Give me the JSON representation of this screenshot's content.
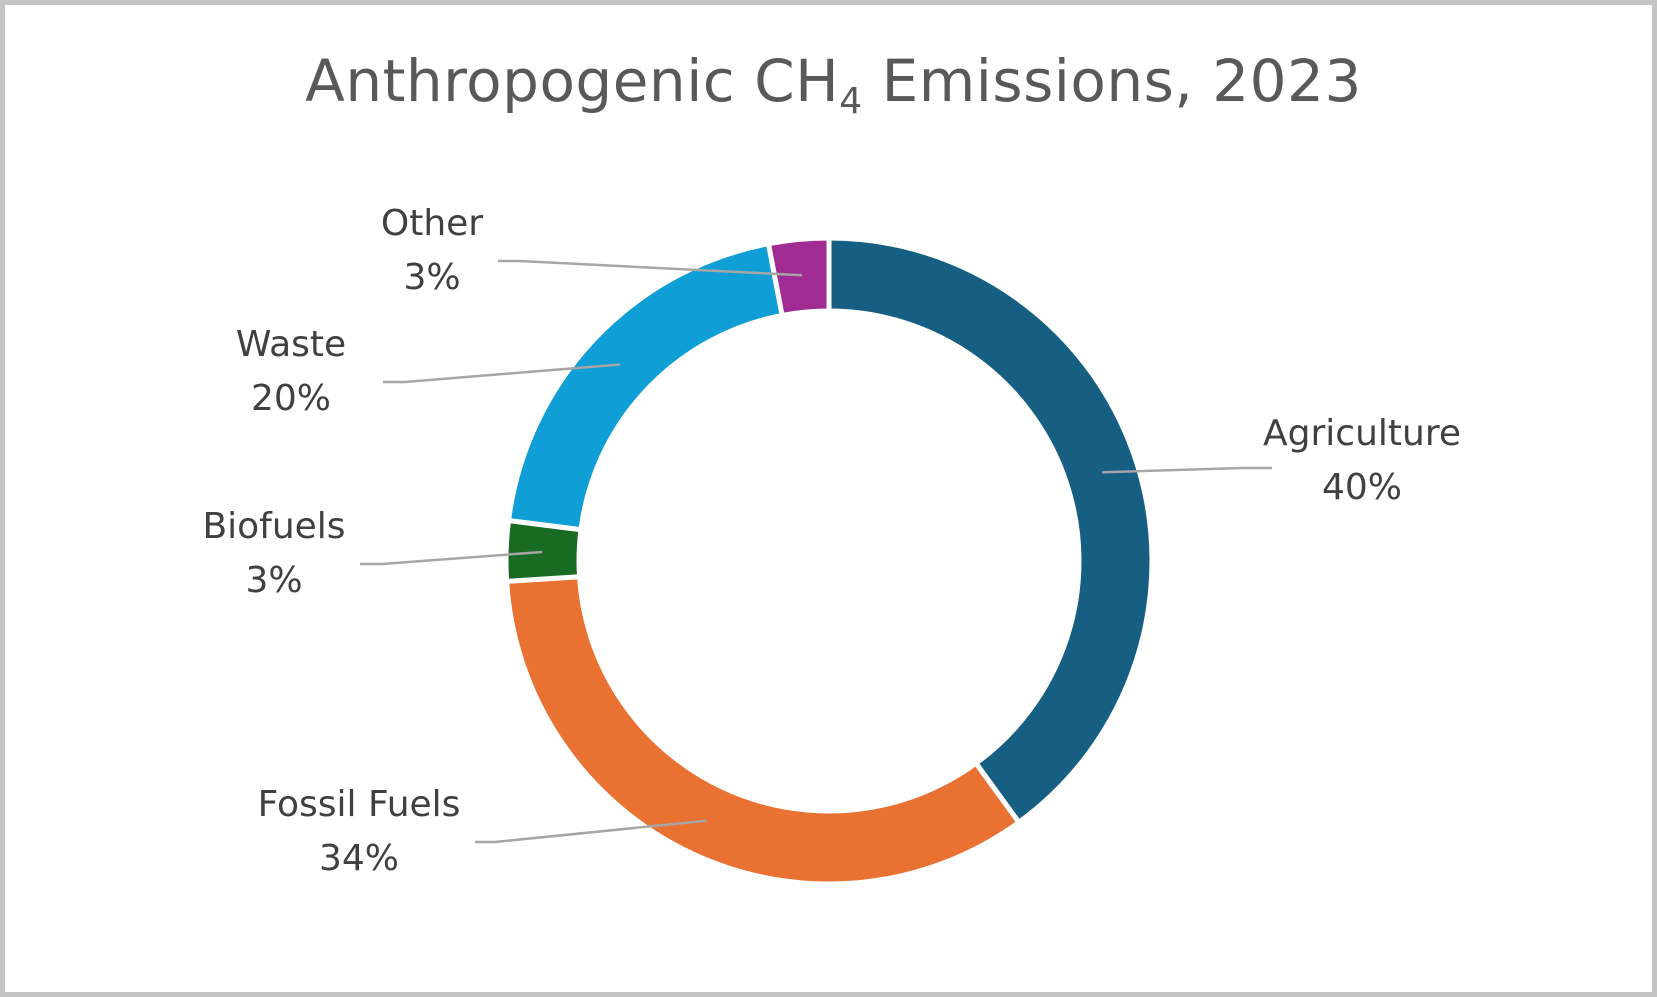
{
  "chart_data": {
    "type": "pie",
    "variant": "donut",
    "title": {
      "main": "Anthropogenic CH",
      "subscript": "4",
      "suffix": " Emissions, 2023"
    },
    "categories": [
      "Agriculture",
      "Fossil Fuels",
      "Biofuels",
      "Waste",
      "Other"
    ],
    "values": [
      40,
      34,
      3,
      20,
      3
    ],
    "labels": [
      "40%",
      "34%",
      "3%",
      "20%",
      "3%"
    ],
    "colors": [
      "#165f82",
      "#e97132",
      "#196b24",
      "#0f9ed5",
      "#a02b93"
    ],
    "start_angle": "12 o'clock",
    "direction": "clockwise",
    "legend": "none",
    "data_labels": "outside with leader lines"
  }
}
